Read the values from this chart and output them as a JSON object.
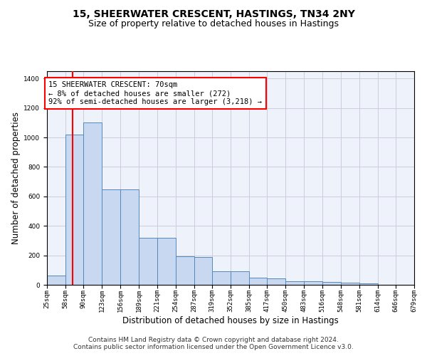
{
  "title": "15, SHEERWATER CRESCENT, HASTINGS, TN34 2NY",
  "subtitle": "Size of property relative to detached houses in Hastings",
  "xlabel": "Distribution of detached houses by size in Hastings",
  "ylabel": "Number of detached properties",
  "footer_line1": "Contains HM Land Registry data © Crown copyright and database right 2024.",
  "footer_line2": "Contains public sector information licensed under the Open Government Licence v3.0.",
  "bar_color": "#c8d8f0",
  "bar_edge_color": "#5588bb",
  "grid_color": "#ccccdd",
  "background_color": "#eef2fb",
  "annotation_line1": "15 SHEERWATER CRESCENT: 70sqm",
  "annotation_line2": "← 8% of detached houses are smaller (272)",
  "annotation_line3": "92% of semi-detached houses are larger (3,218) →",
  "annotation_box_color": "white",
  "annotation_border_color": "red",
  "vline_color": "red",
  "vline_x": 70,
  "bin_edges": [
    25,
    58,
    90,
    123,
    156,
    189,
    221,
    254,
    287,
    319,
    352,
    385,
    417,
    450,
    483,
    516,
    548,
    581,
    614,
    646,
    679
  ],
  "bar_heights": [
    65,
    1020,
    1100,
    650,
    648,
    320,
    320,
    192,
    190,
    90,
    90,
    46,
    45,
    25,
    22,
    20,
    15,
    10,
    2,
    1
  ],
  "ylim": [
    0,
    1450
  ],
  "yticks": [
    0,
    200,
    400,
    600,
    800,
    1000,
    1200,
    1400
  ],
  "title_fontsize": 10,
  "subtitle_fontsize": 9,
  "axis_label_fontsize": 8.5,
  "tick_fontsize": 6.5,
  "annotation_fontsize": 7.5,
  "footer_fontsize": 6.5
}
